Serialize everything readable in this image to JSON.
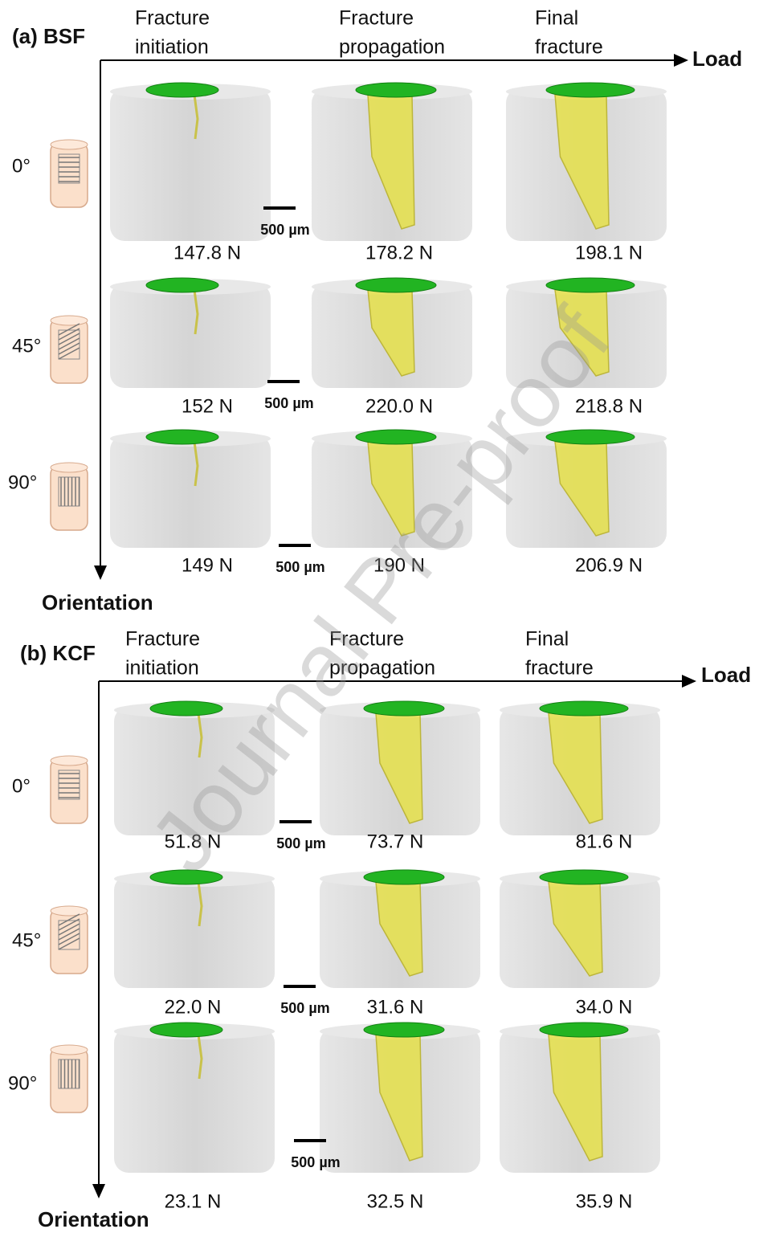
{
  "panels": [
    {
      "label": "(a) BSF",
      "columns": [
        [
          "Fracture",
          "initiation"
        ],
        [
          "Fracture",
          "propagation"
        ],
        [
          "Final",
          "fracture"
        ]
      ],
      "x_axis_label": "Load",
      "y_axis_label": "Orientation",
      "rows": [
        {
          "angle": "0°",
          "forces": [
            "147.8 N",
            "178.2 N",
            "198.1 N"
          ],
          "scale_bar": "500 µm"
        },
        {
          "angle": "45°",
          "forces": [
            "152 N",
            "220.0 N",
            "218.8 N"
          ],
          "scale_bar": "500 µm"
        },
        {
          "angle": "90°",
          "forces": [
            "149 N",
            "190 N",
            "206.9 N"
          ],
          "scale_bar": "500 µm"
        }
      ]
    },
    {
      "label": "(b) KCF",
      "columns": [
        [
          "Fracture",
          "initiation"
        ],
        [
          "Fracture",
          "propagation"
        ],
        [
          "Final",
          "fracture"
        ]
      ],
      "x_axis_label": "Load",
      "y_axis_label": "Orientation",
      "rows": [
        {
          "angle": "0°",
          "forces": [
            "51.8 N",
            "73.7 N",
            "81.6 N"
          ],
          "scale_bar": "500 µm"
        },
        {
          "angle": "45°",
          "forces": [
            "22.0 N",
            "31.6 N",
            "34.0 N"
          ],
          "scale_bar": "500 µm"
        },
        {
          "angle": "90°",
          "forces": [
            "23.1 N",
            "32.5 N",
            "35.9 N"
          ],
          "scale_bar": "500 µm"
        }
      ]
    }
  ],
  "watermark": "Journal Pre-proof"
}
